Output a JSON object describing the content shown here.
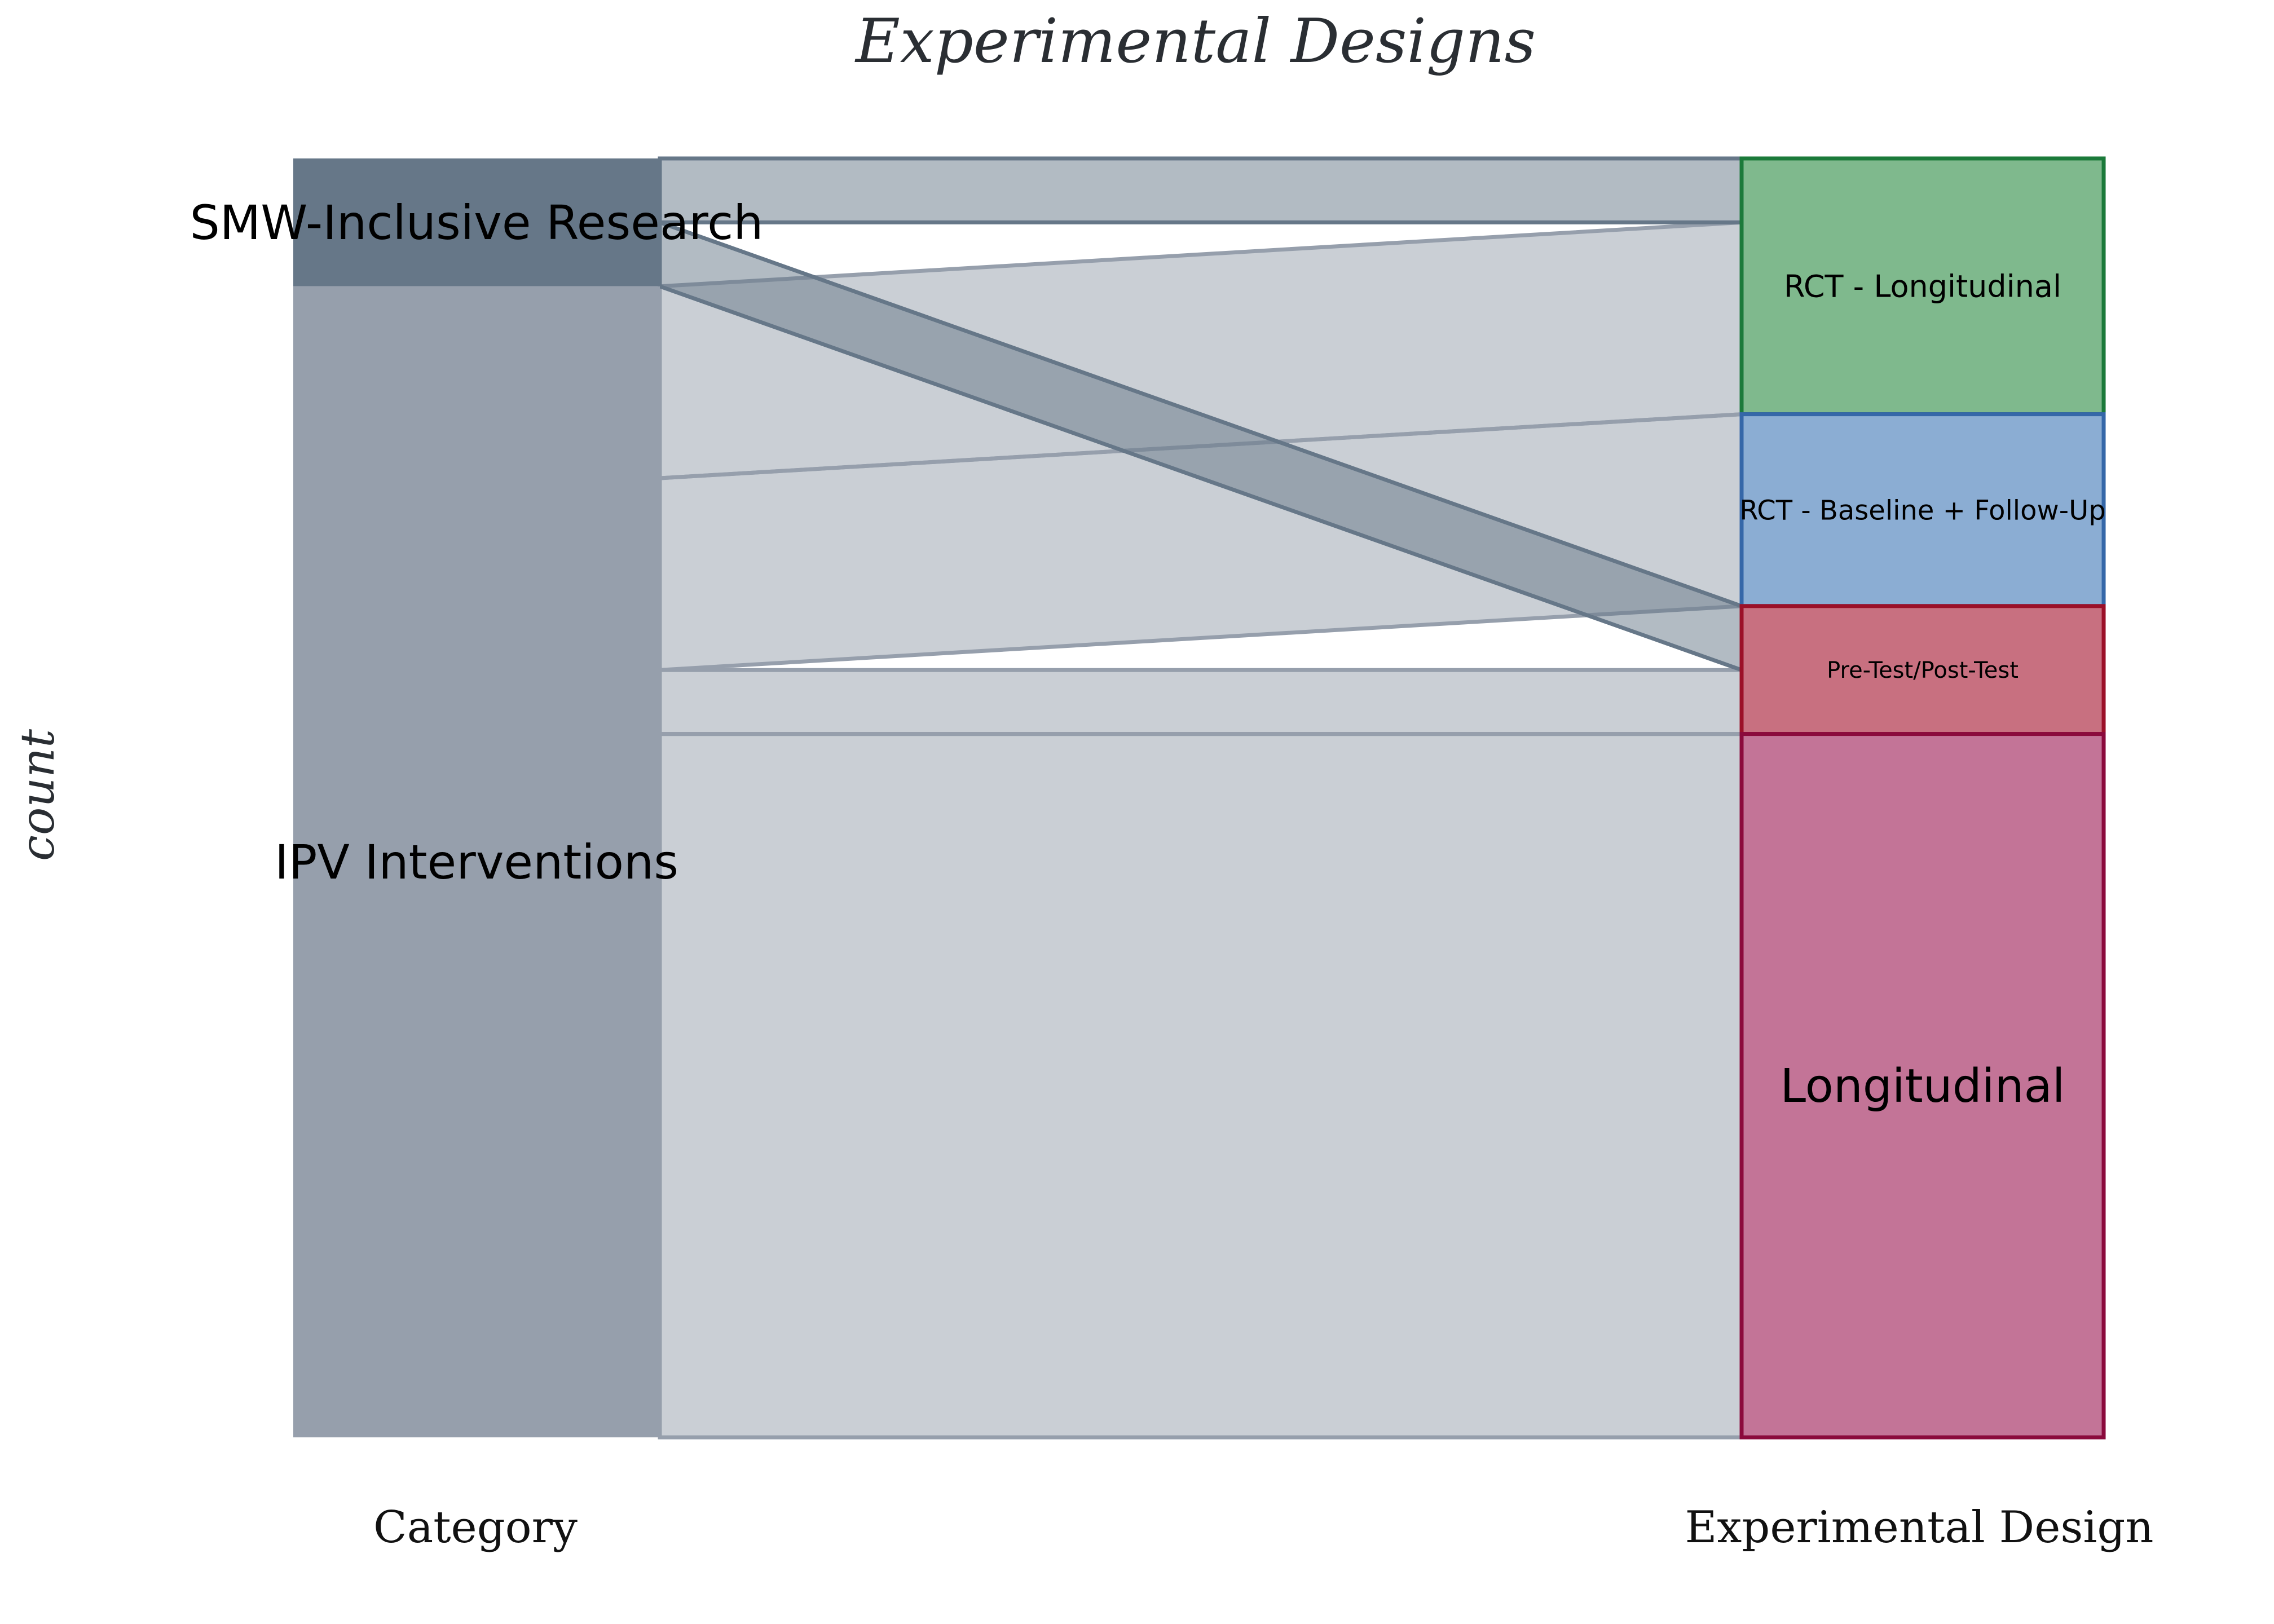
{
  "chart_data": {
    "type": "alluvial",
    "title": "Experimental Designs",
    "ylabel": "count",
    "axes": [
      "Category",
      "Experimental Design"
    ],
    "left_nodes": [
      {
        "name": "SMW-Inclusive Research",
        "value": 2,
        "fill": "#667788"
      },
      {
        "name": "IPV Interventions",
        "value": 18,
        "fill": "#969fac"
      }
    ],
    "right_nodes": [
      {
        "name": "RCT - Longitudinal",
        "value": 4,
        "fill": "#7fb98d",
        "stroke": "#1b7a3a"
      },
      {
        "name": "RCT - Baseline + Follow-Up",
        "value": 3,
        "fill": "#8badd3",
        "stroke": "#3567a8"
      },
      {
        "name": "Pre-Test/Post-Test",
        "value": 2,
        "fill": "#c87080",
        "stroke": "#9b1028"
      },
      {
        "name": "Longitudinal",
        "value": 11,
        "fill": "#c37497",
        "stroke": "#8b0a3c"
      }
    ],
    "flows": [
      {
        "source": "SMW-Inclusive Research",
        "target": "RCT - Longitudinal",
        "value": 1
      },
      {
        "source": "SMW-Inclusive Research",
        "target": "Pre-Test/Post-Test",
        "value": 1
      },
      {
        "source": "IPV Interventions",
        "target": "RCT - Longitudinal",
        "value": 3
      },
      {
        "source": "IPV Interventions",
        "target": "RCT - Baseline + Follow-Up",
        "value": 3
      },
      {
        "source": "IPV Interventions",
        "target": "Pre-Test/Post-Test",
        "value": 1
      },
      {
        "source": "IPV Interventions",
        "target": "Longitudinal",
        "value": 11
      }
    ],
    "total": 20
  }
}
